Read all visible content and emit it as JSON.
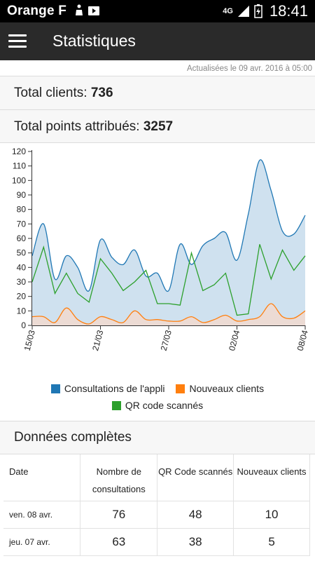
{
  "status_bar": {
    "carrier": "Orange F",
    "network": "4G",
    "time": "18:41",
    "icons": [
      "notification-icon",
      "photo-icon",
      "signal-icon",
      "battery-icon"
    ]
  },
  "app_bar": {
    "title": "Statistiques",
    "menu_icon": "hamburger-menu-icon"
  },
  "updated_text": "Actualisées le 09 avr. 2016 à 05:00",
  "totals": {
    "clients_label": "Total clients:",
    "clients_value": "736",
    "points_label": "Total points attribués:",
    "points_value": "3257"
  },
  "chart_data": {
    "type": "line",
    "x": [
      "15/03",
      "16/03",
      "17/03",
      "18/03",
      "19/03",
      "20/03",
      "21/03",
      "22/03",
      "23/03",
      "24/03",
      "25/03",
      "26/03",
      "27/03",
      "28/03",
      "29/03",
      "30/03",
      "31/03",
      "01/04",
      "02/04",
      "03/04",
      "04/04",
      "05/04",
      "06/04",
      "07/04",
      "08/04"
    ],
    "x_tick_labels": [
      "15/03",
      "21/03",
      "27/03",
      "02/04",
      "08/04"
    ],
    "ylim": [
      0,
      120
    ],
    "y_ticks": [
      0,
      10,
      20,
      30,
      40,
      50,
      60,
      70,
      80,
      90,
      100,
      110,
      120
    ],
    "grid": false,
    "legend_position": "bottom",
    "series": [
      {
        "name": "Consultations de l'appli",
        "color": "#1f77b4",
        "fill": "#cfe1ef",
        "values": [
          48,
          70,
          32,
          48,
          40,
          24,
          59,
          47,
          42,
          52,
          34,
          36,
          24,
          56,
          42,
          55,
          60,
          64,
          45,
          77,
          114,
          93,
          65,
          63,
          76
        ]
      },
      {
        "name": "Nouveaux clients",
        "color": "#ff7f0e",
        "fill": "#eedad0",
        "values": [
          6,
          6,
          2,
          12,
          4,
          1,
          6,
          4,
          2,
          10,
          4,
          4,
          3,
          3,
          6,
          2,
          4,
          7,
          3,
          4,
          6,
          15,
          6,
          5,
          10
        ]
      },
      {
        "name": "QR code scannés",
        "color": "#2ca02c",
        "values": [
          30,
          54,
          22,
          36,
          22,
          16,
          46,
          36,
          24,
          30,
          38,
          15,
          15,
          14,
          50,
          24,
          28,
          36,
          7,
          8,
          56,
          32,
          52,
          38,
          48
        ]
      }
    ]
  },
  "table": {
    "section_title": "Données complètes",
    "headers": [
      "Date",
      "Nombre de consultations",
      "QR Code scannés",
      "Nouveaux clients"
    ],
    "rows": [
      {
        "date": "ven. 08 avr.",
        "consultations": "76",
        "qr": "48",
        "nouveaux": "10"
      },
      {
        "date": "jeu. 07 avr.",
        "consultations": "63",
        "qr": "38",
        "nouveaux": "5"
      }
    ]
  }
}
